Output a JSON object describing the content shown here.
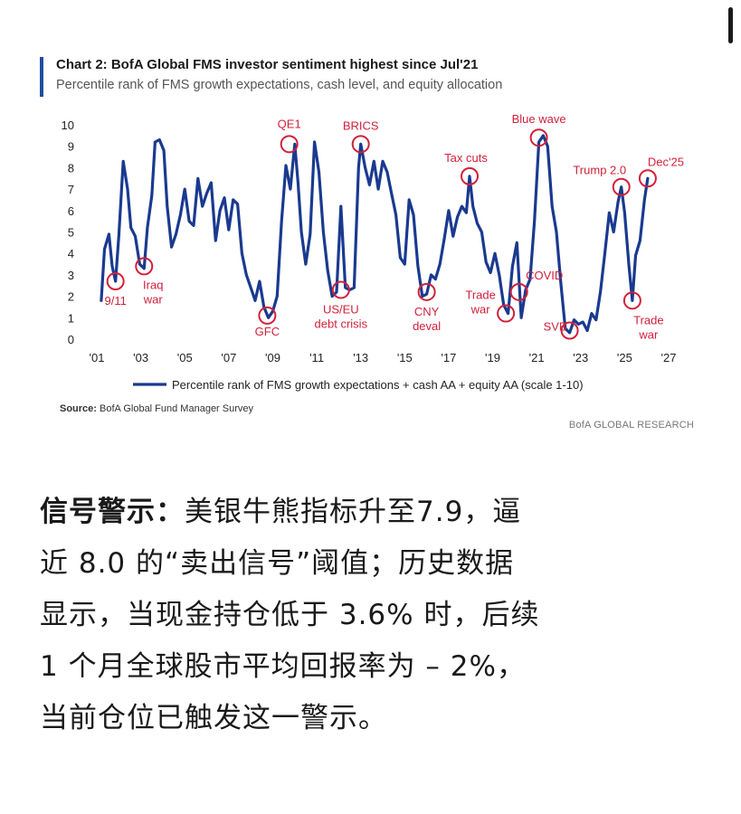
{
  "chart": {
    "title": "Chart 2: BofA Global FMS investor sentiment highest since Jul'21",
    "subtitle": "Percentile rank of FMS growth expectations, cash level, and equity allocation",
    "source_label": "Source:",
    "source_text": "BofA Global Fund Manager Survey",
    "brand": "BofA GLOBAL RESEARCH",
    "accent_color": "#1f4e9e",
    "line_color": "#1a3a8f",
    "marker_color": "#d0213b"
  },
  "chart_data": {
    "type": "line",
    "title": "Chart 2: BofA Global FMS investor sentiment highest since Jul'21",
    "subtitle": "Percentile rank of FMS growth expectations, cash level, and equity allocation",
    "ylim": [
      0,
      10
    ],
    "yticks": [
      0,
      1,
      2,
      3,
      4,
      5,
      6,
      7,
      8,
      9,
      10
    ],
    "xlim": [
      2001,
      2027
    ],
    "xticks": [
      {
        "x": 2001,
        "label": "'01"
      },
      {
        "x": 2003,
        "label": "'03"
      },
      {
        "x": 2005,
        "label": "'05"
      },
      {
        "x": 2007,
        "label": "'07"
      },
      {
        "x": 2009,
        "label": "'09"
      },
      {
        "x": 2011,
        "label": "'11"
      },
      {
        "x": 2013,
        "label": "'13"
      },
      {
        "x": 2015,
        "label": "'15"
      },
      {
        "x": 2017,
        "label": "'17"
      },
      {
        "x": 2019,
        "label": "'19"
      },
      {
        "x": 2021,
        "label": "'21"
      },
      {
        "x": 2023,
        "label": "'23"
      },
      {
        "x": 2025,
        "label": "'25"
      },
      {
        "x": 2027,
        "label": "'27"
      }
    ],
    "grid": false,
    "legend_position": "bottom",
    "series": [
      {
        "name": "Percentile rank of FMS growth expectations + cash AA + equity AA (scale 1-10)",
        "points": [
          [
            2001.2,
            1.8
          ],
          [
            2001.35,
            4.2
          ],
          [
            2001.55,
            4.9
          ],
          [
            2001.7,
            3.4
          ],
          [
            2001.85,
            2.7
          ],
          [
            2002.0,
            4.8
          ],
          [
            2002.2,
            8.3
          ],
          [
            2002.4,
            7.0
          ],
          [
            2002.55,
            5.2
          ],
          [
            2002.75,
            4.8
          ],
          [
            2002.95,
            3.5
          ],
          [
            2003.15,
            3.3
          ],
          [
            2003.3,
            5.2
          ],
          [
            2003.5,
            6.7
          ],
          [
            2003.65,
            9.2
          ],
          [
            2003.85,
            9.3
          ],
          [
            2004.05,
            8.8
          ],
          [
            2004.2,
            6.2
          ],
          [
            2004.4,
            4.3
          ],
          [
            2004.6,
            4.9
          ],
          [
            2004.8,
            5.8
          ],
          [
            2005.0,
            7.0
          ],
          [
            2005.2,
            5.5
          ],
          [
            2005.4,
            5.3
          ],
          [
            2005.6,
            7.5
          ],
          [
            2005.8,
            6.2
          ],
          [
            2006.0,
            6.8
          ],
          [
            2006.2,
            7.3
          ],
          [
            2006.4,
            4.6
          ],
          [
            2006.6,
            6.0
          ],
          [
            2006.8,
            6.6
          ],
          [
            2007.0,
            5.1
          ],
          [
            2007.2,
            6.5
          ],
          [
            2007.4,
            6.3
          ],
          [
            2007.6,
            4.0
          ],
          [
            2007.8,
            3.0
          ],
          [
            2008.0,
            2.4
          ],
          [
            2008.2,
            1.8
          ],
          [
            2008.4,
            2.7
          ],
          [
            2008.6,
            1.5
          ],
          [
            2008.8,
            1.0
          ],
          [
            2009.0,
            1.3
          ],
          [
            2009.2,
            2.0
          ],
          [
            2009.4,
            5.5
          ],
          [
            2009.6,
            8.1
          ],
          [
            2009.8,
            7.0
          ],
          [
            2010.0,
            9.1
          ],
          [
            2010.15,
            7.3
          ],
          [
            2010.3,
            5.0
          ],
          [
            2010.5,
            3.5
          ],
          [
            2010.7,
            4.9
          ],
          [
            2010.9,
            9.2
          ],
          [
            2011.1,
            7.8
          ],
          [
            2011.3,
            5.0
          ],
          [
            2011.5,
            3.2
          ],
          [
            2011.7,
            2.0
          ],
          [
            2011.9,
            2.2
          ],
          [
            2012.1,
            6.2
          ],
          [
            2012.3,
            2.4
          ],
          [
            2012.5,
            2.3
          ],
          [
            2012.7,
            2.4
          ],
          [
            2012.9,
            8.0
          ],
          [
            2013.0,
            9.1
          ],
          [
            2013.2,
            8.0
          ],
          [
            2013.4,
            7.2
          ],
          [
            2013.6,
            8.3
          ],
          [
            2013.8,
            7.0
          ],
          [
            2014.0,
            8.3
          ],
          [
            2014.2,
            7.8
          ],
          [
            2014.4,
            6.8
          ],
          [
            2014.6,
            5.8
          ],
          [
            2014.8,
            3.8
          ],
          [
            2015.0,
            3.5
          ],
          [
            2015.2,
            6.5
          ],
          [
            2015.4,
            5.8
          ],
          [
            2015.6,
            3.4
          ],
          [
            2015.8,
            2.0
          ],
          [
            2016.0,
            2.1
          ],
          [
            2016.2,
            3.0
          ],
          [
            2016.4,
            2.8
          ],
          [
            2016.6,
            3.5
          ],
          [
            2016.8,
            4.7
          ],
          [
            2017.0,
            6.0
          ],
          [
            2017.2,
            4.8
          ],
          [
            2017.4,
            5.7
          ],
          [
            2017.6,
            6.2
          ],
          [
            2017.8,
            5.9
          ],
          [
            2017.95,
            7.6
          ],
          [
            2018.1,
            6.2
          ],
          [
            2018.3,
            5.4
          ],
          [
            2018.5,
            5.0
          ],
          [
            2018.7,
            3.6
          ],
          [
            2018.9,
            3.1
          ],
          [
            2019.1,
            4.0
          ],
          [
            2019.3,
            3.0
          ],
          [
            2019.5,
            1.6
          ],
          [
            2019.7,
            1.2
          ],
          [
            2019.9,
            3.4
          ],
          [
            2020.1,
            4.5
          ],
          [
            2020.3,
            1.0
          ],
          [
            2020.5,
            2.3
          ],
          [
            2020.7,
            2.8
          ],
          [
            2020.9,
            5.5
          ],
          [
            2021.1,
            9.2
          ],
          [
            2021.3,
            9.5
          ],
          [
            2021.5,
            9.0
          ],
          [
            2021.7,
            6.2
          ],
          [
            2021.9,
            5.0
          ],
          [
            2022.1,
            2.6
          ],
          [
            2022.3,
            0.5
          ],
          [
            2022.5,
            0.3
          ],
          [
            2022.7,
            0.9
          ],
          [
            2022.9,
            0.7
          ],
          [
            2023.1,
            0.8
          ],
          [
            2023.3,
            0.4
          ],
          [
            2023.5,
            1.2
          ],
          [
            2023.7,
            0.9
          ],
          [
            2023.9,
            2.2
          ],
          [
            2024.1,
            4.0
          ],
          [
            2024.3,
            5.9
          ],
          [
            2024.5,
            5.0
          ],
          [
            2024.7,
            6.4
          ],
          [
            2024.85,
            7.1
          ],
          [
            2025.0,
            5.9
          ],
          [
            2025.2,
            3.4
          ],
          [
            2025.35,
            1.8
          ],
          [
            2025.5,
            3.9
          ],
          [
            2025.7,
            4.6
          ],
          [
            2025.9,
            6.5
          ],
          [
            2026.05,
            7.5
          ]
        ]
      }
    ],
    "annotations": [
      {
        "label": "9/11",
        "x": 2001.85,
        "y": 2.7,
        "dx": 0,
        "dy": 22
      },
      {
        "label": "Iraq\nwar",
        "x": 2003.15,
        "y": 3.4,
        "dx": 10,
        "dy": 21
      },
      {
        "label": "GFC",
        "x": 2008.75,
        "y": 1.1,
        "dx": 0,
        "dy": 18
      },
      {
        "label": "QE1",
        "x": 2009.75,
        "y": 9.1,
        "dx": 0,
        "dy": -22
      },
      {
        "label": "US/EU\ndebt crisis",
        "x": 2012.1,
        "y": 2.3,
        "dx": 0,
        "dy": 22
      },
      {
        "label": "BRICS",
        "x": 2013.0,
        "y": 9.1,
        "dx": 0,
        "dy": -20
      },
      {
        "label": "CNY\ndeval",
        "x": 2016.0,
        "y": 2.2,
        "dx": 0,
        "dy": 22
      },
      {
        "label": "Tax cuts",
        "x": 2017.95,
        "y": 7.6,
        "dx": -4,
        "dy": -20
      },
      {
        "label": "Trade\nwar",
        "x": 2019.6,
        "y": 1.2,
        "dx": -28,
        "dy": -4
      },
      {
        "label": "COVID",
        "x": 2020.2,
        "y": 2.2,
        "dx": 28,
        "dy": -18
      },
      {
        "label": "Blue wave",
        "x": 2021.1,
        "y": 9.4,
        "dx": 0,
        "dy": -20
      },
      {
        "label": "SVB",
        "x": 2022.5,
        "y": 0.4,
        "dx": -16,
        "dy": -4
      },
      {
        "label": "Trump 2.0",
        "x": 2024.85,
        "y": 7.1,
        "dx": -24,
        "dy": -18
      },
      {
        "label": "Dec'25",
        "x": 2026.05,
        "y": 7.5,
        "dx": 20,
        "dy": -18
      },
      {
        "label": "Trade\nwar",
        "x": 2025.35,
        "y": 1.8,
        "dx": 18,
        "dy": 22
      }
    ]
  },
  "article": {
    "lead": "信号警示：",
    "lines": [
      "美银牛熊指标升至7.9，逼",
      "近 8.0 的“卖出信号”阈值；历史数据",
      "显示，当现金持仓低于 3.6% 时，后续",
      "1 个月全球股市平均回报率为 – 2%，",
      "当前仓位已触发这一警示。"
    ]
  }
}
